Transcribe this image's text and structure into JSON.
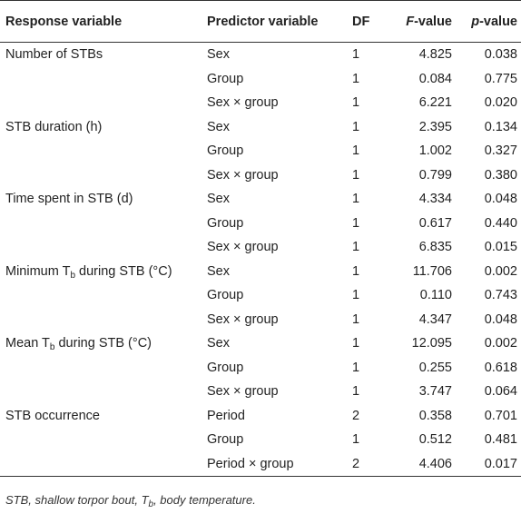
{
  "headers": {
    "response": "Response variable",
    "predictor": "Predictor variable",
    "df": "DF",
    "f_italic": "F",
    "f_rest": "-value",
    "p_italic": "p",
    "p_rest": "-value"
  },
  "rows": [
    {
      "response": "Number of STBs",
      "predictor": "Sex",
      "df": "1",
      "f": "4.825",
      "p": "0.038"
    },
    {
      "response": "",
      "predictor": "Group",
      "df": "1",
      "f": "0.084",
      "p": "0.775"
    },
    {
      "response": "",
      "predictor": "Sex × group",
      "df": "1",
      "f": "6.221",
      "p": "0.020"
    },
    {
      "response": "STB duration (h)",
      "predictor": "Sex",
      "df": "1",
      "f": "2.395",
      "p": "0.134"
    },
    {
      "response": "",
      "predictor": "Group",
      "df": "1",
      "f": "1.002",
      "p": "0.327"
    },
    {
      "response": "",
      "predictor": "Sex × group",
      "df": "1",
      "f": "0.799",
      "p": "0.380"
    },
    {
      "response": "Time spent in STB (d)",
      "predictor": "Sex",
      "df": "1",
      "f": "4.334",
      "p": "0.048"
    },
    {
      "response": "",
      "predictor": "Group",
      "df": "1",
      "f": "0.617",
      "p": "0.440"
    },
    {
      "response": "",
      "predictor": "Sex × group",
      "df": "1",
      "f": "6.835",
      "p": "0.015"
    },
    {
      "response_pre": "Minimum T",
      "response_sub": "b",
      "response_post": " during STB (°C)",
      "predictor": "Sex",
      "df": "1",
      "f": "11.706",
      "p": "0.002"
    },
    {
      "response": "",
      "predictor": "Group",
      "df": "1",
      "f": "0.110",
      "p": "0.743"
    },
    {
      "response": "",
      "predictor": "Sex × group",
      "df": "1",
      "f": "4.347",
      "p": "0.048"
    },
    {
      "response_pre": "Mean T",
      "response_sub": "b",
      "response_post": " during STB (°C)",
      "predictor": "Sex",
      "df": "1",
      "f": "12.095",
      "p": "0.002"
    },
    {
      "response": "",
      "predictor": "Group",
      "df": "1",
      "f": "0.255",
      "p": "0.618"
    },
    {
      "response": "",
      "predictor": "Sex × group",
      "df": "1",
      "f": "3.747",
      "p": "0.064"
    },
    {
      "response": "STB occurrence",
      "predictor": "Period",
      "df": "2",
      "f": "0.358",
      "p": "0.701"
    },
    {
      "response": "",
      "predictor": "Group",
      "df": "1",
      "f": "0.512",
      "p": "0.481"
    },
    {
      "response": "",
      "predictor": "Period × group",
      "df": "2",
      "f": "4.406",
      "p": "0.017"
    }
  ],
  "footnote": {
    "pre": "STB, shallow torpor bout, T",
    "sub": "b",
    "post": ", body temperature."
  }
}
